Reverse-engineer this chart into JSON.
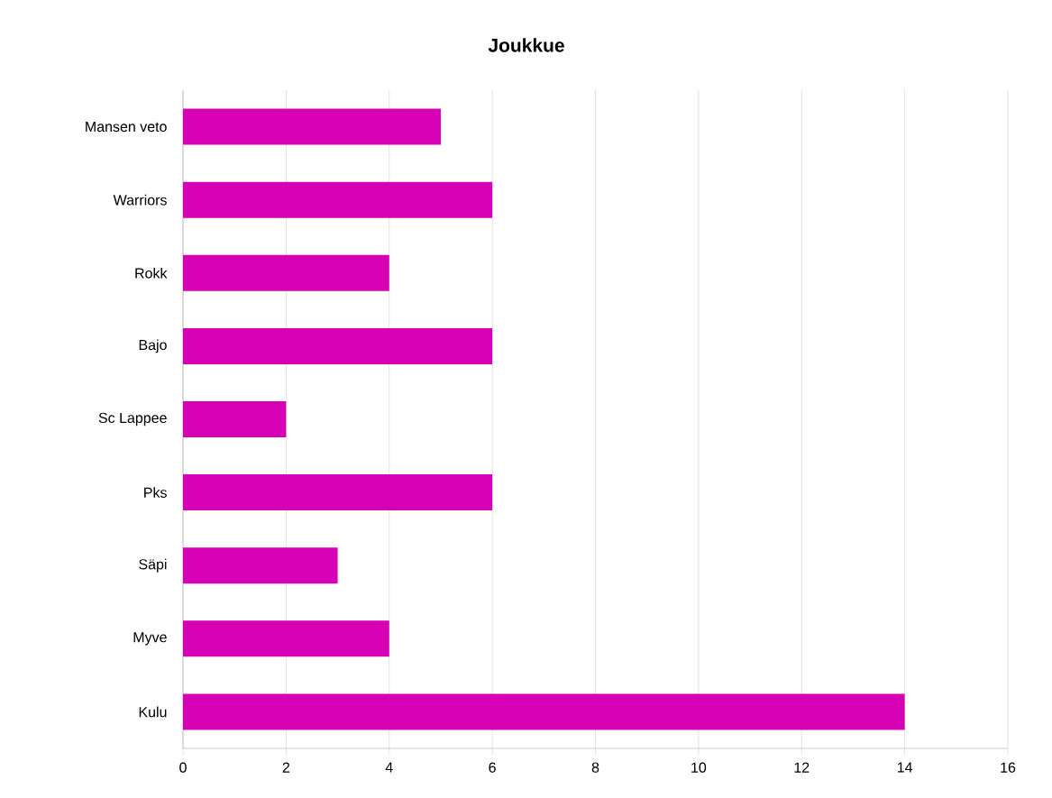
{
  "chart_data": {
    "type": "bar",
    "orientation": "horizontal",
    "title": "Joukkue",
    "categories": [
      "Mansen veto",
      "Warriors",
      "Rokk",
      "Bajo",
      "Sc Lappee",
      "Pks",
      "Säpi",
      "Myve",
      "Kulu"
    ],
    "values": [
      5,
      6,
      4,
      6,
      2,
      6,
      3,
      4,
      14
    ],
    "color": "#d600b4",
    "xlim": [
      0,
      16
    ],
    "xticks": [
      0,
      2,
      4,
      6,
      8,
      10,
      12,
      14,
      16
    ],
    "grid": "x"
  }
}
